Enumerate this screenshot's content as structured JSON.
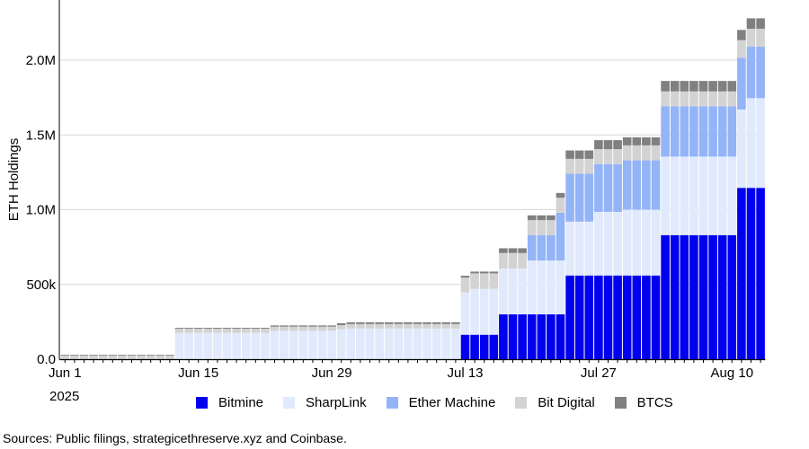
{
  "chart_data": {
    "type": "bar",
    "stacked": true,
    "title": "",
    "xlabel": "",
    "ylabel": "ETH Holdings",
    "ylim": [
      0,
      2300000
    ],
    "y_ticks": [
      0,
      500000,
      1000000,
      1500000,
      2000000
    ],
    "y_tick_labels": [
      "0.0",
      "500k",
      "1.0M",
      "1.5M",
      "2.0M"
    ],
    "x_tick_labels": [
      "Jun 1",
      "Jun 15",
      "Jun 29",
      "Jul 13",
      "Jul 27",
      "Aug 10"
    ],
    "x_tick_indices": [
      0,
      14,
      28,
      42,
      56,
      70
    ],
    "x_year_label": "2025",
    "grid": "horizontal",
    "legend_position": "bottom",
    "categories": [
      "2025-06-01",
      "2025-06-02",
      "2025-06-03",
      "2025-06-04",
      "2025-06-05",
      "2025-06-06",
      "2025-06-07",
      "2025-06-08",
      "2025-06-09",
      "2025-06-10",
      "2025-06-11",
      "2025-06-12",
      "2025-06-13",
      "2025-06-14",
      "2025-06-15",
      "2025-06-16",
      "2025-06-17",
      "2025-06-18",
      "2025-06-19",
      "2025-06-20",
      "2025-06-21",
      "2025-06-22",
      "2025-06-23",
      "2025-06-24",
      "2025-06-25",
      "2025-06-26",
      "2025-06-27",
      "2025-06-28",
      "2025-06-29",
      "2025-06-30",
      "2025-07-01",
      "2025-07-02",
      "2025-07-03",
      "2025-07-04",
      "2025-07-05",
      "2025-07-06",
      "2025-07-07",
      "2025-07-08",
      "2025-07-09",
      "2025-07-10",
      "2025-07-11",
      "2025-07-12",
      "2025-07-13",
      "2025-07-14",
      "2025-07-15",
      "2025-07-16",
      "2025-07-17",
      "2025-07-18",
      "2025-07-19",
      "2025-07-20",
      "2025-07-21",
      "2025-07-22",
      "2025-07-23",
      "2025-07-24",
      "2025-07-25",
      "2025-07-26",
      "2025-07-27",
      "2025-07-28",
      "2025-07-29",
      "2025-07-30",
      "2025-07-31",
      "2025-08-01",
      "2025-08-02",
      "2025-08-03",
      "2025-08-04",
      "2025-08-05",
      "2025-08-06",
      "2025-08-07",
      "2025-08-08",
      "2025-08-09",
      "2025-08-10",
      "2025-08-11",
      "2025-08-12",
      "2025-08-13"
    ],
    "series": [
      {
        "name": "Bitmine",
        "color": "#0000ee",
        "values": [
          0,
          0,
          0,
          0,
          0,
          0,
          0,
          0,
          0,
          0,
          0,
          0,
          0,
          0,
          0,
          0,
          0,
          0,
          0,
          0,
          0,
          0,
          0,
          0,
          0,
          0,
          0,
          0,
          0,
          0,
          0,
          0,
          0,
          0,
          0,
          0,
          0,
          0,
          0,
          0,
          0,
          0,
          164000,
          164000,
          164000,
          164000,
          300000,
          300000,
          300000,
          300000,
          300000,
          300000,
          300000,
          560000,
          560000,
          560000,
          560000,
          560000,
          560000,
          560000,
          560000,
          560000,
          560000,
          830000,
          830000,
          830000,
          830000,
          830000,
          830000,
          830000,
          830000,
          1146000,
          1146000,
          1146000
        ]
      },
      {
        "name": "SharpLink",
        "color": "#e0eafc",
        "values": [
          0,
          0,
          0,
          0,
          0,
          0,
          0,
          0,
          0,
          0,
          0,
          0,
          176000,
          176000,
          176000,
          176000,
          176000,
          176000,
          176000,
          176000,
          176000,
          176000,
          190000,
          190000,
          190000,
          190000,
          190000,
          190000,
          190000,
          200000,
          205000,
          205000,
          205000,
          205000,
          205000,
          205000,
          205000,
          205000,
          205000,
          205000,
          205000,
          205000,
          282000,
          306000,
          306000,
          306000,
          306000,
          306000,
          306000,
          360000,
          360000,
          360000,
          360000,
          360000,
          360000,
          360000,
          425000,
          425000,
          425000,
          440000,
          440000,
          440000,
          440000,
          525000,
          525000,
          525000,
          525000,
          525000,
          525000,
          525000,
          525000,
          524000,
          600000,
          600000
        ]
      },
      {
        "name": "Ether Machine",
        "color": "#93b4f7",
        "values": [
          0,
          0,
          0,
          0,
          0,
          0,
          0,
          0,
          0,
          0,
          0,
          0,
          0,
          0,
          0,
          0,
          0,
          0,
          0,
          0,
          0,
          0,
          0,
          0,
          0,
          0,
          0,
          0,
          0,
          0,
          0,
          0,
          0,
          0,
          0,
          0,
          0,
          0,
          0,
          0,
          0,
          0,
          0,
          0,
          0,
          0,
          0,
          0,
          0,
          170000,
          170000,
          170000,
          320000,
          320000,
          320000,
          320000,
          320000,
          320000,
          320000,
          330000,
          330000,
          330000,
          330000,
          336000,
          336000,
          336000,
          336000,
          336000,
          336000,
          336000,
          336000,
          346000,
          344000,
          344000
        ]
      },
      {
        "name": "Bit Digital",
        "color": "#d3d3d3",
        "values": [
          25000,
          25000,
          25000,
          25000,
          25000,
          25000,
          25000,
          25000,
          25000,
          25000,
          25000,
          25000,
          28000,
          28000,
          28000,
          28000,
          28000,
          28000,
          28000,
          28000,
          28000,
          28000,
          28000,
          28000,
          28000,
          28000,
          28000,
          28000,
          28000,
          28000,
          30000,
          30000,
          30000,
          30000,
          30000,
          30000,
          30000,
          30000,
          30000,
          30000,
          30000,
          30000,
          100000,
          104000,
          104000,
          104000,
          104000,
          104000,
          104000,
          100000,
          100000,
          100000,
          100000,
          100000,
          100000,
          100000,
          100000,
          100000,
          100000,
          100000,
          100000,
          100000,
          100000,
          100000,
          100000,
          100000,
          100000,
          100000,
          100000,
          100000,
          100000,
          118000,
          120000,
          120000
        ]
      },
      {
        "name": "BTCS",
        "color": "#808080",
        "values": [
          5000,
          5000,
          5000,
          5000,
          5000,
          5000,
          5000,
          5000,
          5000,
          5000,
          5000,
          5000,
          6000,
          6000,
          6000,
          6000,
          6000,
          6000,
          6000,
          6000,
          6000,
          6000,
          8000,
          8000,
          8000,
          8000,
          8000,
          8000,
          8000,
          12000,
          12000,
          12000,
          12000,
          12000,
          12000,
          12000,
          12000,
          12000,
          12000,
          12000,
          12000,
          12000,
          12000,
          12000,
          12000,
          12000,
          32000,
          32000,
          32000,
          32000,
          32000,
          32000,
          32000,
          56000,
          56000,
          56000,
          60000,
          60000,
          60000,
          54000,
          54000,
          54000,
          54000,
          70000,
          70000,
          70000,
          70000,
          70000,
          70000,
          70000,
          70000,
          68000,
          70000,
          70000
        ]
      }
    ]
  },
  "source_note": "Sources: Public filings, strategicethreserve.xyz and Coinbase."
}
